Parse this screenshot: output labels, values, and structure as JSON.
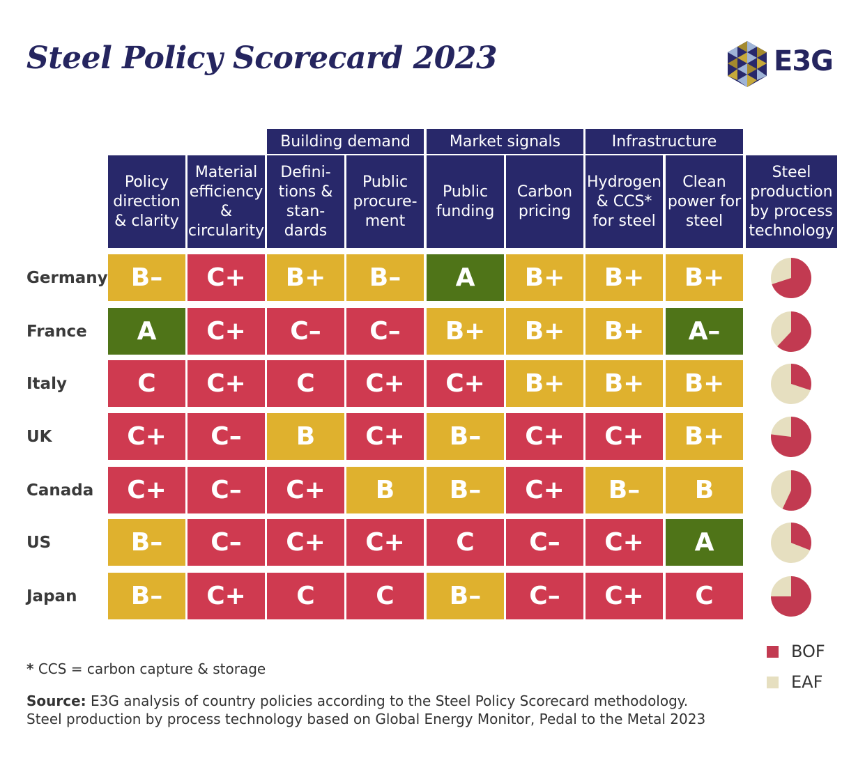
{
  "title": "Steel Policy Scorecard 2023",
  "logo_text": "E3G",
  "colors": {
    "navy": "#28286a",
    "grade_A": "#4f7418",
    "grade_B": "#dfb12e",
    "grade_C": "#cf3a50",
    "bof": "#c23a51",
    "eaf": "#e6dfc0"
  },
  "groups": [
    {
      "label": "Building demand"
    },
    {
      "label": "Market signals"
    },
    {
      "label": "Infrastructure"
    }
  ],
  "columns": [
    {
      "label": "Policy\ndirection\n& clarity"
    },
    {
      "label": "Material\nefficiency\n&\ncircularity"
    },
    {
      "label": "Defini-\ntions &\nstan-\ndards"
    },
    {
      "label": "Public\nprocure-\nment"
    },
    {
      "label": "Public\nfunding"
    },
    {
      "label": "Carbon\npricing"
    },
    {
      "label": "Hydrogen\n& CCS*\nfor steel"
    },
    {
      "label": "Clean\npower for\nsteel"
    },
    {
      "label": "Steel\nproduction\nby process\ntechnology"
    }
  ],
  "chart_data": {
    "type": "table",
    "title": "Steel Policy Scorecard 2023",
    "rows": [
      {
        "country": "Germany",
        "grades": [
          "B–",
          "C+",
          "B+",
          "B–",
          "A",
          "B+",
          "B+",
          "B+"
        ],
        "bof_share": 0.7
      },
      {
        "country": "France",
        "grades": [
          "A",
          "C+",
          "C–",
          "C–",
          "B+",
          "B+",
          "B+",
          "A–"
        ],
        "bof_share": 0.62
      },
      {
        "country": "Italy",
        "grades": [
          "C",
          "C+",
          "C",
          "C+",
          "C+",
          "B+",
          "B+",
          "B+"
        ],
        "bof_share": 0.3
      },
      {
        "country": "UK",
        "grades": [
          "C+",
          "C–",
          "B",
          "C+",
          "B–",
          "C+",
          "C+",
          "B+"
        ],
        "bof_share": 0.77
      },
      {
        "country": "Canada",
        "grades": [
          "C+",
          "C–",
          "C+",
          "B",
          "B–",
          "C+",
          "B–",
          "B"
        ],
        "bof_share": 0.57
      },
      {
        "country": "US",
        "grades": [
          "B–",
          "C–",
          "C+",
          "C+",
          "C",
          "C–",
          "C+",
          "A"
        ],
        "bof_share": 0.31
      },
      {
        "country": "Japan",
        "grades": [
          "B–",
          "C+",
          "C",
          "C",
          "B–",
          "C–",
          "C+",
          "C"
        ],
        "bof_share": 0.75
      }
    ],
    "legend": [
      {
        "label": "BOF",
        "color": "#c23a51"
      },
      {
        "label": "EAF",
        "color": "#e6dfc0"
      }
    ]
  },
  "footnote": "CCS = carbon capture & storage",
  "footnote_marker": "*",
  "source_label": "Source:",
  "source_line1": "E3G analysis of country policies according to the Steel Policy Scorecard methodology.",
  "source_line2": "Steel production by process technology based on Global Energy Monitor, Pedal to the Metal 2023"
}
